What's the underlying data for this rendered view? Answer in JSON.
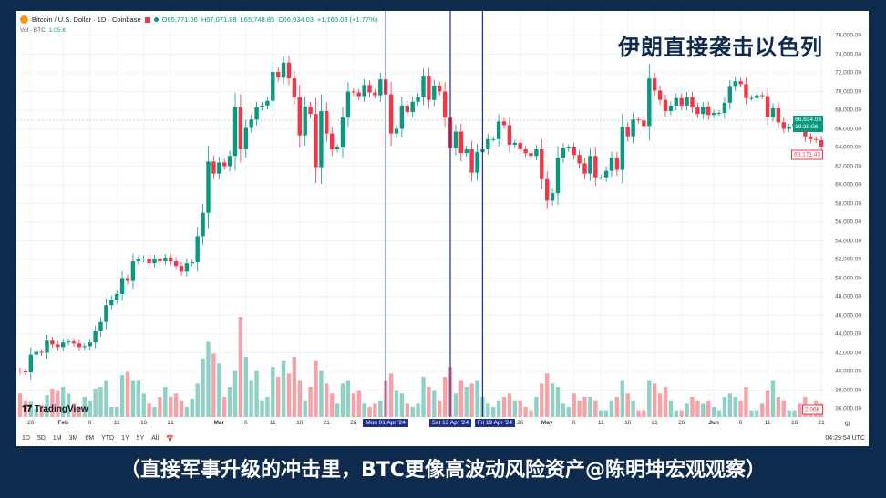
{
  "header": {
    "symbol": "Bitcoin / U.S. Dollar · 1D · Coinbase",
    "open": "O65,771.56",
    "high": "H67,071.88",
    "low": "L65,748.85",
    "close": "C66,934.03",
    "change": "+1,165.03 (+1.77%)",
    "volume_label": "Vol · BTC",
    "volume_value": "1.05 K"
  },
  "overlay_title": "伊朗直接袭击以色列",
  "caption": "（直接军事升级的冲击里，BTC更像高波动风险资产@陈明坤宏观观察）",
  "price_tags": {
    "crosshair_price": "66,934.03",
    "countdown": "19:30:06",
    "last_price": "63,171.43",
    "last_volume": "2.06K"
  },
  "toolbar": {
    "ranges": [
      "1D",
      "5D",
      "1M",
      "3M",
      "6M",
      "YTD",
      "1Y",
      "5Y",
      "All"
    ],
    "clock": "04:29:54 UTC"
  },
  "brand": "TradingView",
  "colors": {
    "up": "#089981",
    "down": "#f23645",
    "up_volume": "#8fd1c4",
    "down_volume": "#f5a3a8",
    "marker_line": "#1c2f8f",
    "frame": "#0e2a4c"
  },
  "chart_data": {
    "type": "candlestick",
    "start_date": "2024-01-24",
    "first_open": 40100,
    "ylim": [
      35000,
      77000
    ],
    "yticks": [
      36000,
      38000,
      40000,
      42000,
      44000,
      46000,
      48000,
      50000,
      52000,
      54000,
      56000,
      58000,
      60000,
      62000,
      64000,
      66000,
      68000,
      70000,
      72000,
      74000,
      76000
    ],
    "ytick_labels": [
      "36,000.00",
      "38,000.00",
      "40,000.00",
      "42,000.00",
      "44,000.00",
      "46,000.00",
      "48,000.00",
      "50,000.00",
      "52,000.00",
      "54,000.00",
      "56,000.00",
      "58,000.00",
      "60,000.00",
      "62,000.00",
      "64,000.00",
      "66,000.00",
      "68,000.00",
      "70,000.00",
      "72,000.00",
      "74,000.00",
      "76,000.00"
    ],
    "xticks": [
      {
        "label": "26",
        "date": "2024-01-26"
      },
      {
        "label": "Feb",
        "date": "2024-02-01",
        "bold": true
      },
      {
        "label": "6",
        "date": "2024-02-06"
      },
      {
        "label": "11",
        "date": "2024-02-11"
      },
      {
        "label": "16",
        "date": "2024-02-16"
      },
      {
        "label": "21",
        "date": "2024-02-21"
      },
      {
        "label": "Mar",
        "date": "2024-03-01",
        "bold": true
      },
      {
        "label": "6",
        "date": "2024-03-06"
      },
      {
        "label": "11",
        "date": "2024-03-11"
      },
      {
        "label": "16",
        "date": "2024-03-16"
      },
      {
        "label": "21",
        "date": "2024-03-21"
      },
      {
        "label": "26",
        "date": "2024-03-26"
      },
      {
        "label": "26",
        "date": "2024-04-26"
      },
      {
        "label": "May",
        "date": "2024-05-01",
        "bold": true
      },
      {
        "label": "6",
        "date": "2024-05-06"
      },
      {
        "label": "11",
        "date": "2024-05-11"
      },
      {
        "label": "16",
        "date": "2024-05-16"
      },
      {
        "label": "21",
        "date": "2024-05-21"
      },
      {
        "label": "26",
        "date": "2024-05-26"
      },
      {
        "label": "Jun",
        "date": "2024-06-01",
        "bold": true
      },
      {
        "label": "6",
        "date": "2024-06-06"
      },
      {
        "label": "11",
        "date": "2024-06-11"
      },
      {
        "label": "16",
        "date": "2024-06-16"
      },
      {
        "label": "21",
        "date": "2024-06-21"
      }
    ],
    "event_markers": [
      {
        "date": "2024-04-01",
        "label": "Mon 01 Apr '24"
      },
      {
        "date": "2024-04-13",
        "label": "Sat 13 Apr '24"
      },
      {
        "date": "2024-04-19",
        "label": "Fri 19 Apr '24"
      }
    ],
    "close": [
      40000,
      39900,
      41800,
      42100,
      42000,
      43300,
      42900,
      42600,
      43100,
      43200,
      43000,
      42600,
      42700,
      43100,
      44300,
      45300,
      47100,
      47700,
      48300,
      50000,
      49700,
      51800,
      52000,
      52100,
      51600,
      52100,
      51800,
      52200,
      51800,
      51300,
      50700,
      51600,
      51700,
      54500,
      57000,
      62500,
      61200,
      62400,
      62000,
      63100,
      68300,
      63800,
      66100,
      67000,
      68300,
      68500,
      69000,
      72100,
      71500,
      73100,
      71400,
      69400,
      65300,
      68400,
      67600,
      61900,
      67900,
      65500,
      63800,
      64000,
      67200,
      70000,
      69900,
      69500,
      70700,
      69900,
      69600,
      71300,
      69700,
      65500,
      66000,
      68500,
      67800,
      68900,
      69400,
      71600,
      69100,
      70600,
      70000,
      67200,
      63900,
      65700,
      63400,
      63800,
      61300,
      63500,
      63800,
      64900,
      64900,
      66800,
      66400,
      64300,
      64500,
      63800,
      63400,
      63100,
      63800,
      60600,
      58300,
      59100,
      62900,
      63900,
      64000,
      63200,
      62300,
      61200,
      63100,
      60800,
      60800,
      61500,
      62900,
      61600,
      66200,
      65200,
      67000,
      66900,
      66300,
      71400,
      70100,
      69100,
      67900,
      68500,
      69300,
      68500,
      69400,
      68300,
      67600,
      68400,
      67500,
      67700,
      67700,
      68800,
      70500,
      71100,
      70800,
      69300,
      69300,
      69600,
      69500,
      67300,
      68200,
      66700,
      66000,
      66200,
      66600,
      66500,
      65200,
      64900,
      64800,
      64100,
      64200,
      63171.43
    ],
    "volume": [
      14000,
      10000,
      9000,
      5000,
      7000,
      13000,
      17000,
      16000,
      18000,
      14000,
      8000,
      6000,
      12000,
      10000,
      17000,
      18000,
      22000,
      6000,
      6000,
      25000,
      27000,
      22000,
      22000,
      14000,
      8000,
      6000,
      12000,
      18000,
      12000,
      14000,
      10000,
      6000,
      11000,
      20000,
      35000,
      45000,
      38000,
      32000,
      12000,
      18000,
      28000,
      60000,
      36000,
      22000,
      28000,
      10000,
      12000,
      30000,
      24000,
      34000,
      26000,
      36000,
      22000,
      10000,
      18000,
      34000,
      28000,
      20000,
      14000,
      8000,
      20000,
      22000,
      14000,
      16000,
      8000,
      6000,
      8000,
      10000,
      22000,
      26000,
      16000,
      14000,
      8000,
      6000,
      8000,
      24000,
      18000,
      16000,
      10000,
      24000,
      30000,
      14000,
      22000,
      18000,
      20000,
      22000,
      12000,
      8000,
      6000,
      10000,
      12000,
      14000,
      10000,
      10000,
      6000,
      4000,
      12000,
      20000,
      26000,
      20000,
      18000,
      8000,
      6000,
      14000,
      10000,
      12000,
      12000,
      10000,
      4000,
      4000,
      10000,
      12000,
      22000,
      14000,
      10000,
      4000,
      4000,
      22000,
      20000,
      14000,
      18000,
      10000,
      4000,
      4000,
      8000,
      12000,
      10000,
      8000,
      10000,
      6000,
      4000,
      12000,
      14000,
      12000,
      10000,
      18000,
      4000,
      4000,
      8000,
      16000,
      22000,
      12000,
      10000,
      4000,
      4000,
      8000,
      12000,
      4000,
      10000,
      8000,
      3000,
      2060
    ]
  }
}
